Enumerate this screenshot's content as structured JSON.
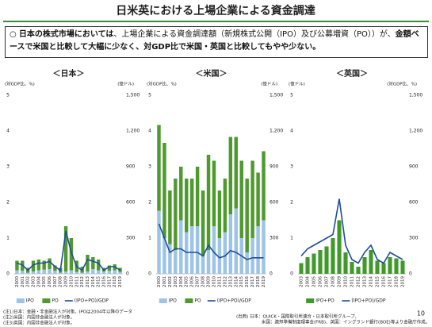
{
  "header": {
    "title": "日米英における上場企業による資金調達"
  },
  "summary": [
    {
      "text": "○ ",
      "bold": false
    },
    {
      "text": "日本の株式市場においては",
      "bold": true
    },
    {
      "text": "、上場企業による資金調達額（新規株式公開（IPO）及び公募増資（PO））が、",
      "bold": false
    },
    {
      "text": "金額ベースで米国と比較して大幅に少なく、対GDP比で米国・英国と比較してもやや少ない。",
      "bold": true
    }
  ],
  "chart_data": [
    {
      "type": "bar",
      "title": "＜日本＞",
      "y_label": "(対GDP比、%)",
      "y2_label": "(億ドル)",
      "stacked": true,
      "categories": [
        "2000",
        "2001",
        "2002",
        "2003",
        "2004",
        "2005",
        "2006",
        "2007",
        "2008",
        "2009",
        "2010",
        "2011",
        "2012",
        "2013",
        "2014",
        "2015",
        "2016",
        "2017",
        "2018",
        "2019"
      ],
      "series": [
        {
          "name": "IPO",
          "color": "#9dc3e6",
          "axis": "y2",
          "values": [
            30,
            25,
            10,
            20,
            30,
            35,
            40,
            25,
            10,
            20,
            30,
            15,
            10,
            20,
            40,
            30,
            20,
            25,
            30,
            15
          ]
        },
        {
          "name": "PO",
          "color": "#4e9a2e",
          "axis": "y2",
          "values": [
            80,
            85,
            40,
            90,
            90,
            75,
            90,
            45,
            40,
            380,
            270,
            95,
            50,
            140,
            100,
            90,
            30,
            45,
            50,
            35
          ]
        },
        {
          "name": "(IPO+PO)/GDP",
          "type": "line",
          "color": "#1f4e9a",
          "values": [
            0.3,
            0.25,
            0.1,
            0.25,
            0.3,
            0.3,
            0.35,
            0.2,
            0.1,
            1.2,
            0.6,
            0.2,
            0.1,
            0.4,
            0.35,
            0.3,
            0.1,
            0.2,
            0.2,
            0.1
          ]
        }
      ],
      "ylim": [
        0,
        5
      ],
      "yticks": [
        0,
        1,
        2,
        3,
        4,
        5
      ],
      "y2lim": [
        0,
        1500
      ],
      "y2ticks": [
        0,
        300,
        600,
        900,
        {
          "value": 1200,
          "label": "1,200"
        },
        {
          "value": 1500,
          "label": "1,500"
        }
      ]
    },
    {
      "type": "bar",
      "title": "＜米国＞",
      "y_label": "(対GDP比、%)",
      "y2_label": "(億ドル)",
      "stacked": true,
      "categories": [
        "2000",
        "2001",
        "2002",
        "2003",
        "2004",
        "2005",
        "2006",
        "2007",
        "2008",
        "2009",
        "2010",
        "2011",
        "2012",
        "2013",
        "2014",
        "2015",
        "2016",
        "2017",
        "2018",
        "2019"
      ],
      "series": [
        {
          "name": "IPO",
          "color": "#9dc3e6",
          "axis": "y2",
          "values": [
            530,
            300,
            250,
            200,
            450,
            350,
            400,
            400,
            150,
            200,
            400,
            300,
            350,
            500,
            550,
            300,
            180,
            300,
            400,
            450
          ]
        },
        {
          "name": "PO",
          "color": "#4e9a2e",
          "axis": "y2",
          "values": [
            720,
            800,
            450,
            600,
            450,
            450,
            400,
            500,
            550,
            800,
            550,
            400,
            450,
            650,
            600,
            650,
            620,
            650,
            450,
            580
          ]
        },
        {
          "name": "(IPO+PO)/GDP",
          "type": "line",
          "color": "#1f4e9a",
          "values": [
            1.4,
            1.0,
            0.6,
            0.7,
            0.7,
            0.6,
            0.6,
            0.6,
            0.5,
            0.8,
            0.6,
            0.45,
            0.5,
            0.65,
            0.6,
            0.5,
            0.4,
            0.45,
            0.45,
            0.45
          ]
        }
      ],
      "ylim": [
        0,
        5
      ],
      "yticks": [
        0,
        1,
        2,
        3,
        4,
        5
      ],
      "y2lim": [
        0,
        1500
      ],
      "y2ticks": [
        0,
        300,
        600,
        900,
        {
          "value": 1200,
          "label": "1,200"
        },
        {
          "value": 1500,
          "label": "1,500"
        }
      ]
    },
    {
      "type": "bar",
      "title": "＜英国＞",
      "y_label": "(億ドル)",
      "y2_label": "(対GDP比、%)",
      "stacked": true,
      "categories": [
        "2003",
        "2004",
        "2005",
        "2006",
        "2007",
        "2008",
        "2009",
        "2010",
        "2011",
        "2012",
        "2013",
        "2014",
        "2015",
        "2016",
        "2017",
        "2018",
        "2019"
      ],
      "series": [
        {
          "name": "IPO+PO",
          "color": "#3f9a2a",
          "axis": "y2",
          "values": [
            90,
            140,
            170,
            200,
            230,
            300,
            450,
            180,
            100,
            60,
            140,
            200,
            110,
            90,
            140,
            130,
            110
          ]
        },
        {
          "name": "(IPO+PO)/GDP",
          "type": "line",
          "color": "#1f4e9a",
          "values": [
            0.5,
            0.7,
            0.8,
            0.9,
            1.0,
            1.1,
            2.1,
            0.8,
            0.4,
            0.3,
            0.6,
            0.8,
            0.4,
            0.3,
            0.6,
            0.5,
            0.4
          ]
        }
      ],
      "ylim": [
        0,
        5
      ],
      "yticks": [
        0,
        1,
        2,
        3,
        4,
        5
      ],
      "y2lim": [
        0,
        1500
      ],
      "y2ticks": [
        0,
        300,
        600,
        900,
        {
          "value": 1200,
          "label": "1,200"
        },
        {
          "value": 1500,
          "label": "1,500"
        }
      ]
    }
  ],
  "notes": [
    "(注1)日本：金融・非金融法人が対象。IPOは2004年以降のデータ",
    "(注2)米国：内国非金融法人が対象。",
    "(注3)英国：内国非金融法人が対象。"
  ],
  "sources": [
    "(出典) 日本：QUICK・国際取引所連合・日本取引所グループ、",
    "米国：連邦準備制度理事会(FRB)、英国：イングランド銀行(BOE)等より金融庁作成。"
  ],
  "page_number": "10"
}
